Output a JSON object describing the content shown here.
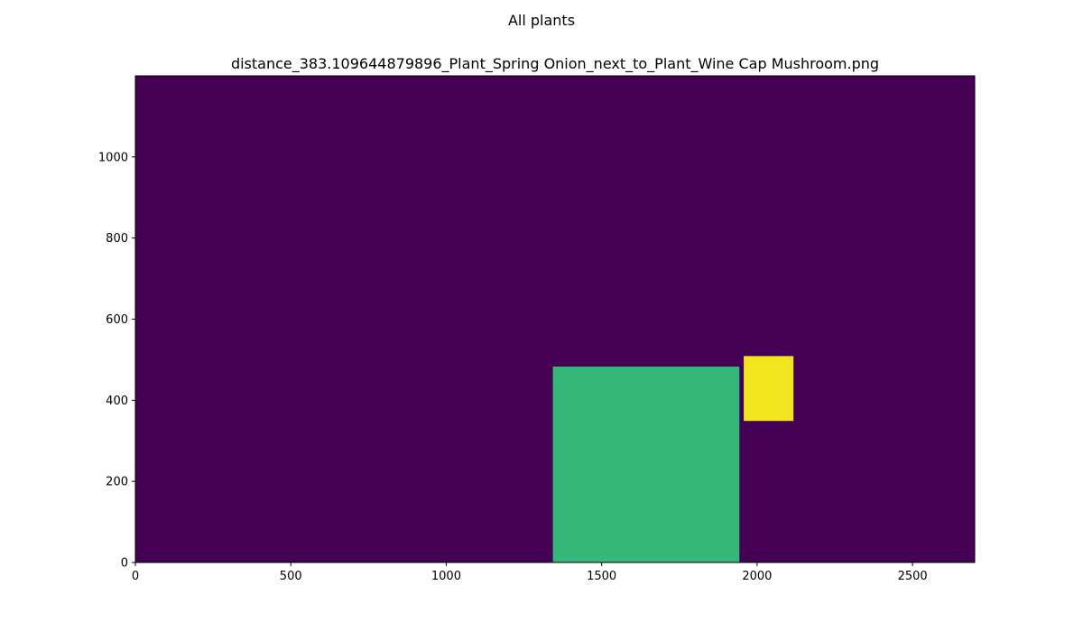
{
  "chart_data": {
    "type": "heatmap",
    "suptitle": "All plants",
    "title": "distance_383.109644879896_Plant_Spring Onion_next_to_Plant_Wine Cap Mushroom.png",
    "xlabel": "",
    "ylabel": "",
    "xlim": [
      0,
      2700
    ],
    "ylim": [
      0,
      1200
    ],
    "xticks": [
      0,
      500,
      1000,
      1500,
      2000,
      2500
    ],
    "yticks": [
      0,
      200,
      400,
      600,
      800,
      1000
    ],
    "grid": false,
    "background_color": "#440154",
    "regions": [
      {
        "x": [
          1343,
          1943
        ],
        "y": [
          0,
          483
        ],
        "color": "#35b779"
      },
      {
        "x": [
          1957,
          2117
        ],
        "y": [
          349,
          509
        ],
        "color": "#f0e51f"
      }
    ]
  }
}
